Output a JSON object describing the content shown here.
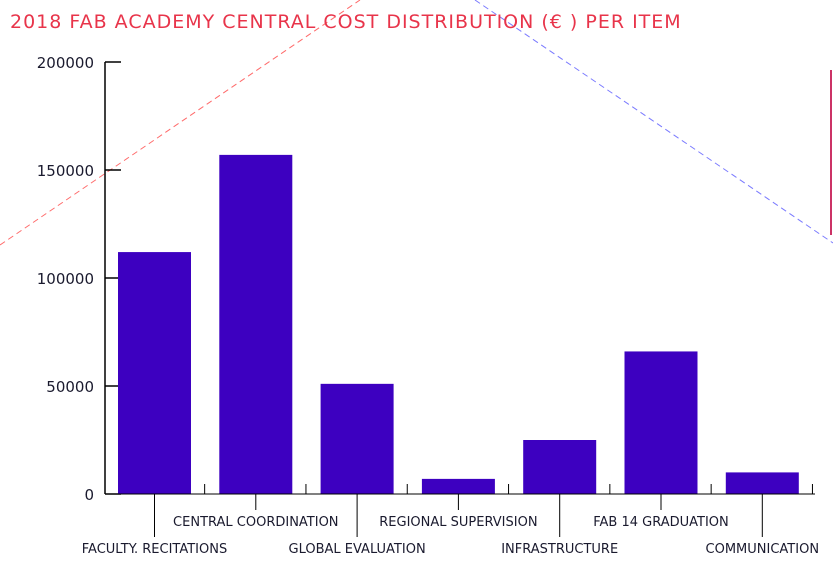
{
  "chart_data": {
    "type": "bar",
    "title": "2018 FAB ACADEMY CENTRAL COST DISTRIBUTION (€ ) PER ITEM",
    "xlabel": "",
    "ylabel": "",
    "categories": [
      "FACULTY. RECITATIONS",
      "CENTRAL COORDINATION",
      "GLOBAL EVALUATION",
      "REGIONAL SUPERVISION",
      "INFRASTRUCTURE",
      "FAB 14 GRADUATION",
      "COMMUNICATION"
    ],
    "values": [
      112000,
      157000,
      51000,
      7000,
      25000,
      66000,
      10000
    ],
    "ylim": [
      0,
      200000
    ],
    "yticks": [
      "0",
      "50000",
      "100000",
      "150000",
      "200000"
    ],
    "grid": false,
    "legend": "none"
  },
  "colors": {
    "bar": "#3d00c0",
    "title": "#e8344a",
    "axis": "#000000",
    "text": "#1a1a2e",
    "deco_red": "#ff6b6b",
    "deco_blue": "#7a7aff"
  }
}
